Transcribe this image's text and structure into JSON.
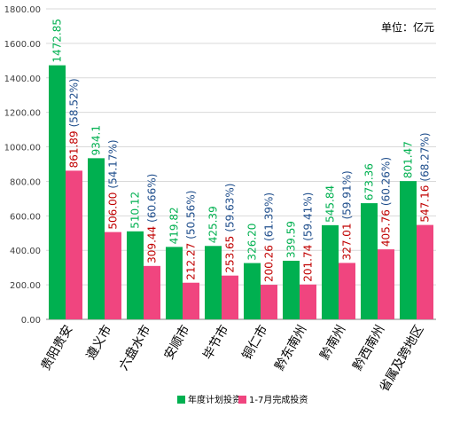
{
  "unit_note": "单位：亿元",
  "colors": {
    "plan": "#00B050",
    "done": "#F0457F",
    "done_pct": "#1F4E8C",
    "done_value": "#C00000",
    "grid": "#D9D9D9",
    "axis": "#7F7F7F"
  },
  "chart_data": {
    "type": "bar",
    "categories": [
      "贵阳贵安",
      "遵义市",
      "六盘水市",
      "安顺市",
      "毕节市",
      "铜仁市",
      "黔东南州",
      "黔南州",
      "黔西南州",
      "省属及跨地区"
    ],
    "series": [
      {
        "name": "年度计划投资",
        "values": [
          1472.85,
          934.1,
          510.12,
          419.82,
          425.39,
          326.2,
          339.59,
          545.84,
          673.36,
          801.47
        ],
        "labels": [
          "1472.85",
          "934.1",
          "510.12",
          "419.82",
          "425.39",
          "326.20",
          "339.59",
          "545.84",
          "673.36",
          "801.47"
        ]
      },
      {
        "name": "1-7月完成投资",
        "values": [
          861.89,
          506.0,
          309.44,
          212.27,
          253.65,
          200.26,
          201.74,
          327.01,
          405.76,
          547.16
        ],
        "labels": [
          "861.89",
          "506.00",
          "309.44",
          "212.27",
          "253.65",
          "200.26",
          "201.74",
          "327.01",
          "405.76",
          "547.16"
        ],
        "pct_labels": [
          "(58.52%)",
          "(54.17%)",
          "(60.66%)",
          "(50.56%)",
          "(59.63%)",
          "(61.39%)",
          "(59.41%)",
          "(59.91%)",
          "(60.26%)",
          "(68.27%)"
        ]
      }
    ],
    "yticks": [
      "0.00",
      "200.00",
      "400.00",
      "600.00",
      "800.00",
      "1000.00",
      "1200.00",
      "1400.00",
      "1600.00",
      "1800.00"
    ],
    "ylim": [
      0,
      1800
    ],
    "grid": true,
    "legend_position": "bottom"
  }
}
